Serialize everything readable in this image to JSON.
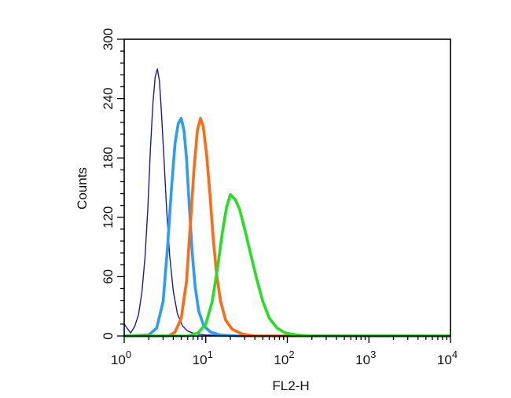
{
  "chart_data": {
    "type": "line",
    "xlabel": "FL2-H",
    "ylabel": "Counts",
    "x_scale": "log",
    "xlim": [
      1,
      10000
    ],
    "ylim": [
      0,
      300
    ],
    "grid": false,
    "legend": "none",
    "x_ticks": [
      {
        "value": 1,
        "base": "10",
        "exp": "0"
      },
      {
        "value": 10,
        "base": "10",
        "exp": "1"
      },
      {
        "value": 100,
        "base": "10",
        "exp": "2"
      },
      {
        "value": 1000,
        "base": "10",
        "exp": "3"
      },
      {
        "value": 10000,
        "base": "10",
        "exp": "4"
      }
    ],
    "y_ticks": [
      {
        "value": 0,
        "label": "0"
      },
      {
        "value": 60,
        "label": "60"
      },
      {
        "value": 120,
        "label": "120"
      },
      {
        "value": 180,
        "label": "180"
      },
      {
        "value": 240,
        "label": "240"
      },
      {
        "value": 300,
        "label": "300"
      }
    ],
    "series": [
      {
        "color": "#1a1aa8",
        "stroke": "thin",
        "points": [
          [
            1.0,
            12
          ],
          [
            1.2,
            3
          ],
          [
            1.35,
            10
          ],
          [
            1.5,
            22
          ],
          [
            1.65,
            45
          ],
          [
            1.8,
            80
          ],
          [
            1.95,
            130
          ],
          [
            2.1,
            190
          ],
          [
            2.25,
            235
          ],
          [
            2.4,
            262
          ],
          [
            2.55,
            270
          ],
          [
            2.7,
            258
          ],
          [
            2.85,
            228
          ],
          [
            3.05,
            185
          ],
          [
            3.3,
            130
          ],
          [
            3.6,
            82
          ],
          [
            4.0,
            45
          ],
          [
            4.5,
            22
          ],
          [
            5.2,
            10
          ],
          [
            6.0,
            5
          ],
          [
            7.5,
            2
          ],
          [
            10,
            1
          ],
          [
            20,
            0
          ],
          [
            10000,
            0
          ]
        ]
      },
      {
        "color": "#2a9df4",
        "stroke": "thick",
        "points": [
          [
            1.0,
            0
          ],
          [
            2.0,
            1
          ],
          [
            2.5,
            8
          ],
          [
            3.0,
            35
          ],
          [
            3.4,
            90
          ],
          [
            3.8,
            150
          ],
          [
            4.2,
            195
          ],
          [
            4.6,
            215
          ],
          [
            5.0,
            220
          ],
          [
            5.4,
            208
          ],
          [
            5.8,
            180
          ],
          [
            6.3,
            130
          ],
          [
            6.8,
            85
          ],
          [
            7.4,
            50
          ],
          [
            8.2,
            25
          ],
          [
            9.5,
            10
          ],
          [
            11.5,
            4
          ],
          [
            15,
            1
          ],
          [
            25,
            0
          ],
          [
            10000,
            0
          ]
        ]
      },
      {
        "color": "#ff6a13",
        "stroke": "thick",
        "points": [
          [
            1.0,
            0
          ],
          [
            3.5,
            0
          ],
          [
            4.2,
            4
          ],
          [
            5.0,
            18
          ],
          [
            5.8,
            55
          ],
          [
            6.5,
            115
          ],
          [
            7.2,
            170
          ],
          [
            7.9,
            208
          ],
          [
            8.6,
            220
          ],
          [
            9.3,
            212
          ],
          [
            10.2,
            185
          ],
          [
            11.2,
            145
          ],
          [
            12.3,
            100
          ],
          [
            13.6,
            62
          ],
          [
            15.2,
            35
          ],
          [
            17.5,
            16
          ],
          [
            21,
            7
          ],
          [
            28,
            2
          ],
          [
            40,
            0
          ],
          [
            10000,
            0
          ]
        ]
      },
      {
        "color": "#22e022",
        "stroke": "thick",
        "points": [
          [
            1.0,
            0
          ],
          [
            6.0,
            0
          ],
          [
            8.0,
            3
          ],
          [
            10,
            12
          ],
          [
            12,
            35
          ],
          [
            14,
            70
          ],
          [
            16,
            105
          ],
          [
            18,
            130
          ],
          [
            20,
            143
          ],
          [
            23,
            138
          ],
          [
            26,
            128
          ],
          [
            30,
            108
          ],
          [
            35,
            85
          ],
          [
            42,
            58
          ],
          [
            50,
            35
          ],
          [
            60,
            18
          ],
          [
            75,
            8
          ],
          [
            95,
            3
          ],
          [
            130,
            1
          ],
          [
            200,
            0
          ],
          [
            10000,
            0
          ]
        ]
      }
    ]
  }
}
